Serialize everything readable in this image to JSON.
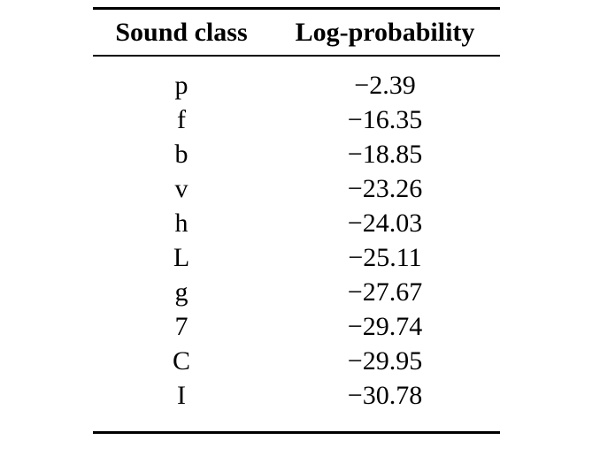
{
  "table": {
    "headers": {
      "sound_class": "Sound class",
      "log_probability": "Log-probability"
    },
    "rows": [
      {
        "sound_class": "p",
        "log_probability": "−2.39"
      },
      {
        "sound_class": "f",
        "log_probability": "−16.35"
      },
      {
        "sound_class": "b",
        "log_probability": "−18.85"
      },
      {
        "sound_class": "v",
        "log_probability": "−23.26"
      },
      {
        "sound_class": "h",
        "log_probability": "−24.03"
      },
      {
        "sound_class": "L",
        "log_probability": "−25.11"
      },
      {
        "sound_class": "g",
        "log_probability": "−27.67"
      },
      {
        "sound_class": "7",
        "log_probability": "−29.74"
      },
      {
        "sound_class": "C",
        "log_probability": "−29.95"
      },
      {
        "sound_class": "I",
        "log_probability": "−30.78"
      }
    ]
  },
  "colors": {
    "text": "#000000",
    "background": "#ffffff",
    "rule": "#000000"
  }
}
